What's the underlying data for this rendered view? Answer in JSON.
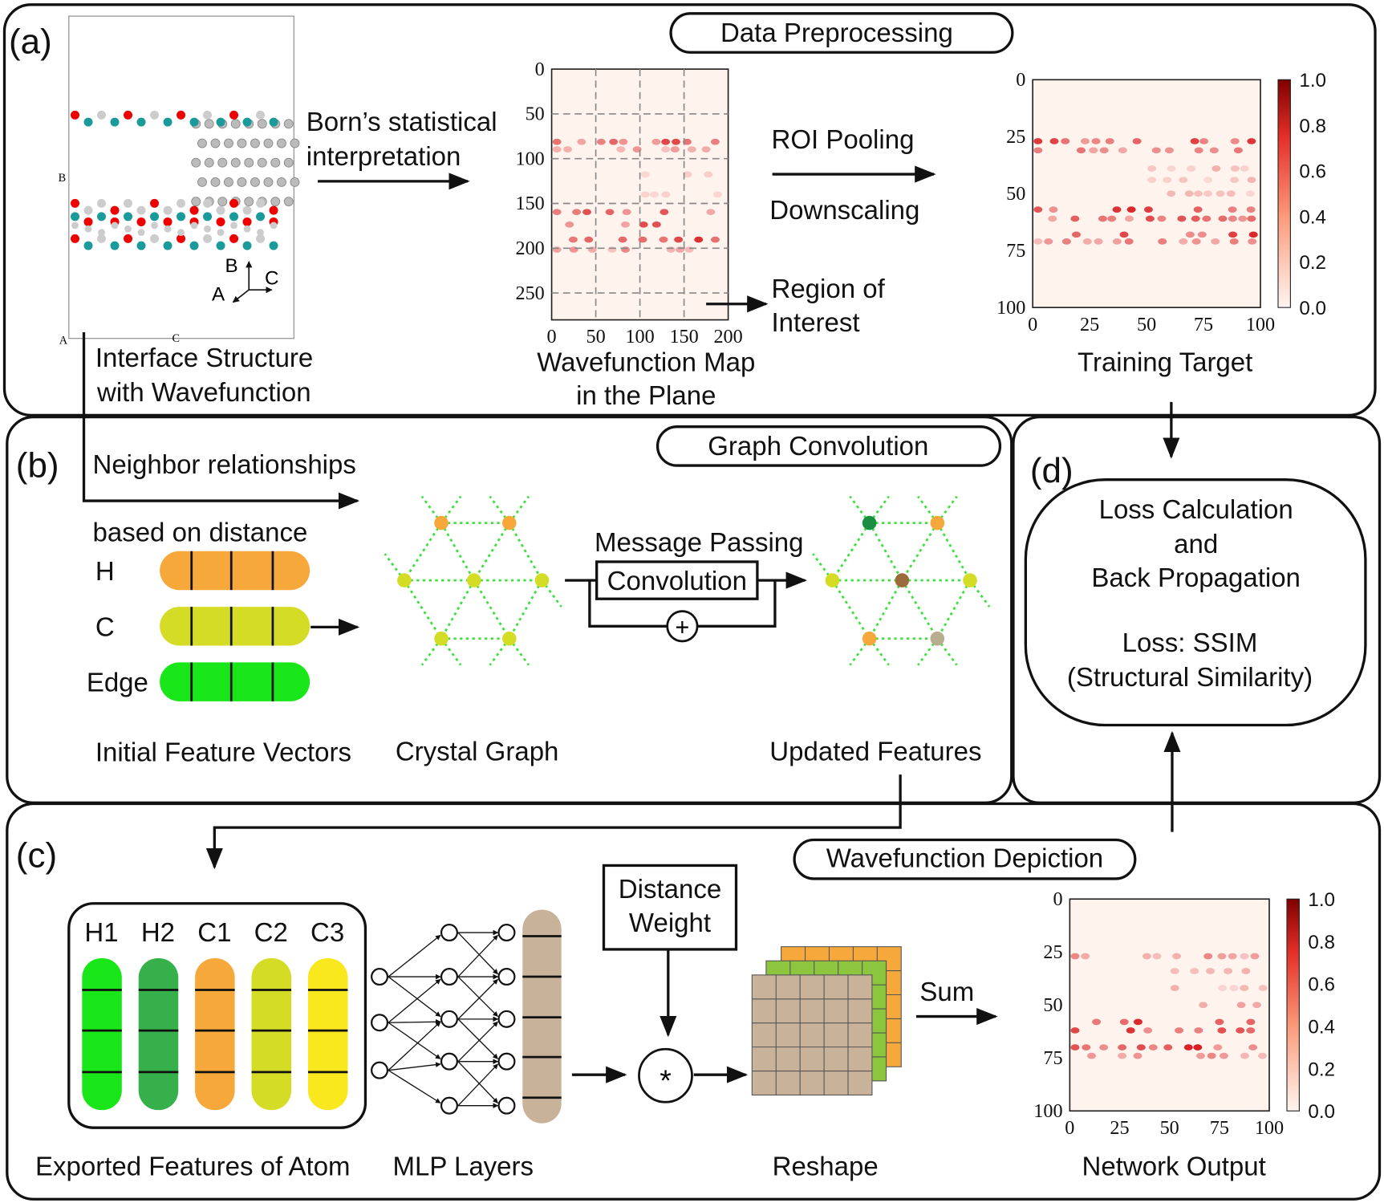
{
  "panel_labels": {
    "a": "(a)",
    "b": "(b)",
    "c": "(c)",
    "d": "(d)"
  },
  "panel_a": {
    "title": "Data Preprocessing",
    "born_line1": "Born’s statistical",
    "born_line2": "interpretation",
    "structure_axes": {
      "b": "B",
      "c": "C",
      "a": "A"
    },
    "structure_frame_labels": {
      "b": "B",
      "a": "A",
      "c": "C"
    },
    "structure_caption_line1": "Interface Structure",
    "structure_caption_line2": "with Wavefunction",
    "wavefunction_map": {
      "y_ticks": [
        "0",
        "50",
        "100",
        "150",
        "200",
        "250"
      ],
      "x_ticks": [
        "0",
        "50",
        "100",
        "150",
        "200"
      ],
      "caption_line1": "Wavefunction Map",
      "caption_line2": "in the Plane"
    },
    "roi_pooling": "ROI Pooling",
    "downscaling": "Downscaling",
    "region_line1": "Region of",
    "region_line2": "Interest",
    "training_target": {
      "y_ticks": [
        "0",
        "25",
        "50",
        "75",
        "100"
      ],
      "x_ticks": [
        "0",
        "25",
        "50",
        "75",
        "100"
      ],
      "colorbar_ticks": [
        "1.0",
        "0.8",
        "0.6",
        "0.4",
        "0.2",
        "0.0"
      ],
      "caption": "Training Target"
    }
  },
  "panel_b": {
    "title": "Graph Convolution",
    "neighbor": "Neighbor relationships",
    "based_on_distance": "based on distance",
    "feature_rows": [
      {
        "label": "H",
        "color": "#f7a83a"
      },
      {
        "label": "C",
        "color": "#d4dc26"
      },
      {
        "label": "Edge",
        "color": "#19e619"
      }
    ],
    "message_passing": "Message Passing",
    "convolution": "Convolution",
    "plus": "+",
    "caption_initial": "Initial Feature Vectors",
    "caption_crystal": "Crystal Graph",
    "caption_updated": "Updated Features"
  },
  "panel_c": {
    "title": "Wavefunction Depiction",
    "features": [
      {
        "label": "H1",
        "color": "#19e619"
      },
      {
        "label": "H2",
        "color": "#35b04a"
      },
      {
        "label": "C1",
        "color": "#f7a83a"
      },
      {
        "label": "C2",
        "color": "#d4dc26"
      },
      {
        "label": "C3",
        "color": "#f9e81e"
      }
    ],
    "distance_weight_line1": "Distance",
    "distance_weight_line2": "Weight",
    "multiply": "*",
    "sum": "Sum",
    "caption_features": "Exported Features of Atom",
    "caption_mlp": "MLP Layers",
    "caption_reshape": "Reshape",
    "network_output": {
      "y_ticks": [
        "0",
        "25",
        "50",
        "75",
        "100"
      ],
      "x_ticks": [
        "0",
        "25",
        "50",
        "75",
        "100"
      ],
      "colorbar_ticks": [
        "1.0",
        "0.8",
        "0.6",
        "0.4",
        "0.2",
        "0.0"
      ],
      "caption": "Network Output"
    }
  },
  "panel_d": {
    "line1": "Loss Calculation",
    "line2": "and",
    "line3": "Back Propagation",
    "line4": "Loss: SSIM",
    "line5": "(Structural Similarity)"
  },
  "colors": {
    "tan": "#c8b29a",
    "heat_dark": "#8b0000",
    "heat_light": "#fff0ea"
  }
}
